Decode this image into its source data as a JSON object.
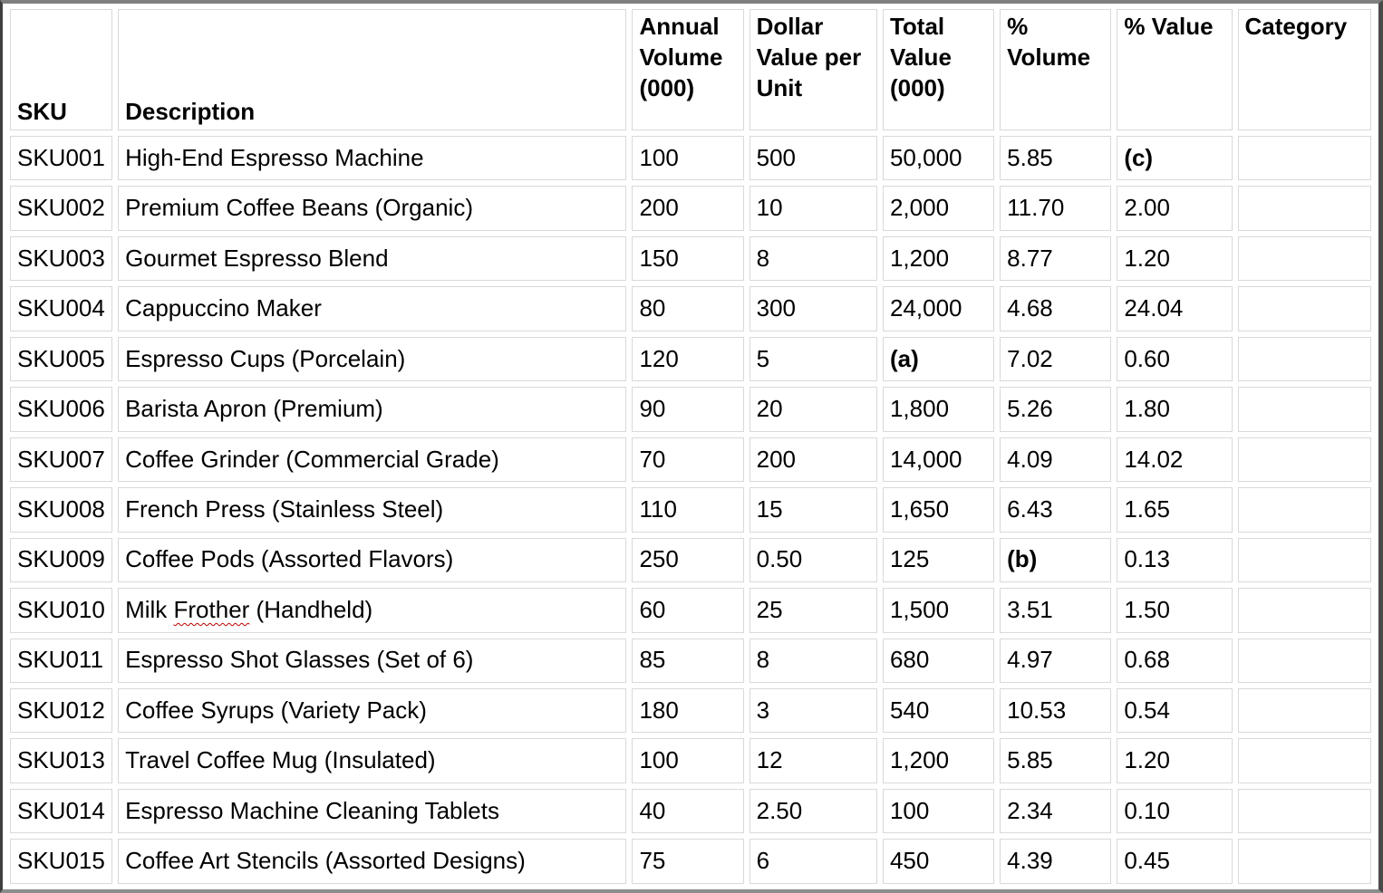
{
  "table": {
    "columns": [
      "SKU",
      "Description",
      "Annual Volume (000)",
      "Dollar Value per Unit",
      "Total Value (000)",
      "% Volume",
      "% Value",
      "Category"
    ],
    "rows": [
      {
        "cells": [
          "SKU001",
          "High-End Espresso Machine",
          "100",
          "500",
          "50,000",
          "5.85",
          "(c)",
          ""
        ],
        "bold": [
          6
        ]
      },
      {
        "cells": [
          "SKU002",
          "Premium Coffee Beans (Organic)",
          "200",
          "10",
          "2,000",
          "11.70",
          "2.00",
          ""
        ]
      },
      {
        "cells": [
          "SKU003",
          "Gourmet Espresso Blend",
          "150",
          "8",
          "1,200",
          "8.77",
          "1.20",
          ""
        ]
      },
      {
        "cells": [
          "SKU004",
          "Cappuccino Maker",
          "80",
          "300",
          "24,000",
          "4.68",
          "24.04",
          ""
        ]
      },
      {
        "cells": [
          "SKU005",
          "Espresso Cups (Porcelain)",
          "120",
          "5",
          "(a)",
          "7.02",
          "0.60",
          ""
        ],
        "bold": [
          4
        ]
      },
      {
        "cells": [
          "SKU006",
          "Barista Apron (Premium)",
          "90",
          "20",
          "1,800",
          "5.26",
          "1.80",
          ""
        ]
      },
      {
        "cells": [
          "SKU007",
          "Coffee Grinder (Commercial Grade)",
          "70",
          "200",
          "14,000",
          "4.09",
          "14.02",
          ""
        ]
      },
      {
        "cells": [
          "SKU008",
          "French Press (Stainless Steel)",
          "110",
          "15",
          "1,650",
          "6.43",
          "1.65",
          ""
        ]
      },
      {
        "cells": [
          "SKU009",
          "Coffee Pods (Assorted Flavors)",
          "250",
          "0.50",
          "125",
          "(b)",
          "0.13",
          ""
        ],
        "bold": [
          5
        ]
      },
      {
        "cells": [
          "SKU010",
          "Milk Frother (Handheld)",
          "60",
          "25",
          "1,500",
          "3.51",
          "1.50",
          ""
        ],
        "misspelled_word": "Frother"
      },
      {
        "cells": [
          "SKU011",
          "Espresso Shot Glasses (Set of 6)",
          "85",
          "8",
          "680",
          "4.97",
          "0.68",
          ""
        ]
      },
      {
        "cells": [
          "SKU012",
          "Coffee Syrups (Variety Pack)",
          "180",
          "3",
          "540",
          "10.53",
          "0.54",
          ""
        ]
      },
      {
        "cells": [
          "SKU013",
          "Travel Coffee Mug (Insulated)",
          "100",
          "12",
          "1,200",
          "5.85",
          "1.20",
          ""
        ]
      },
      {
        "cells": [
          "SKU014",
          "Espresso Machine Cleaning Tablets",
          "40",
          "2.50",
          "100",
          "2.34",
          "0.10",
          ""
        ]
      },
      {
        "cells": [
          "SKU015",
          "Coffee Art Stencils (Assorted Designs)",
          "75",
          "6",
          "450",
          "4.39",
          "0.45",
          ""
        ]
      }
    ]
  },
  "colors": {
    "cell_border": "#d9d9d9",
    "outer_border_left": "#3f3f3f",
    "outer_border_top": "#7f7f7f",
    "outer_border_right": "#4a4a4a",
    "outer_border_bottom": "#8c8c8c",
    "spellcheck_underline": "#c00000",
    "text": "#000000",
    "background": "#ffffff"
  }
}
